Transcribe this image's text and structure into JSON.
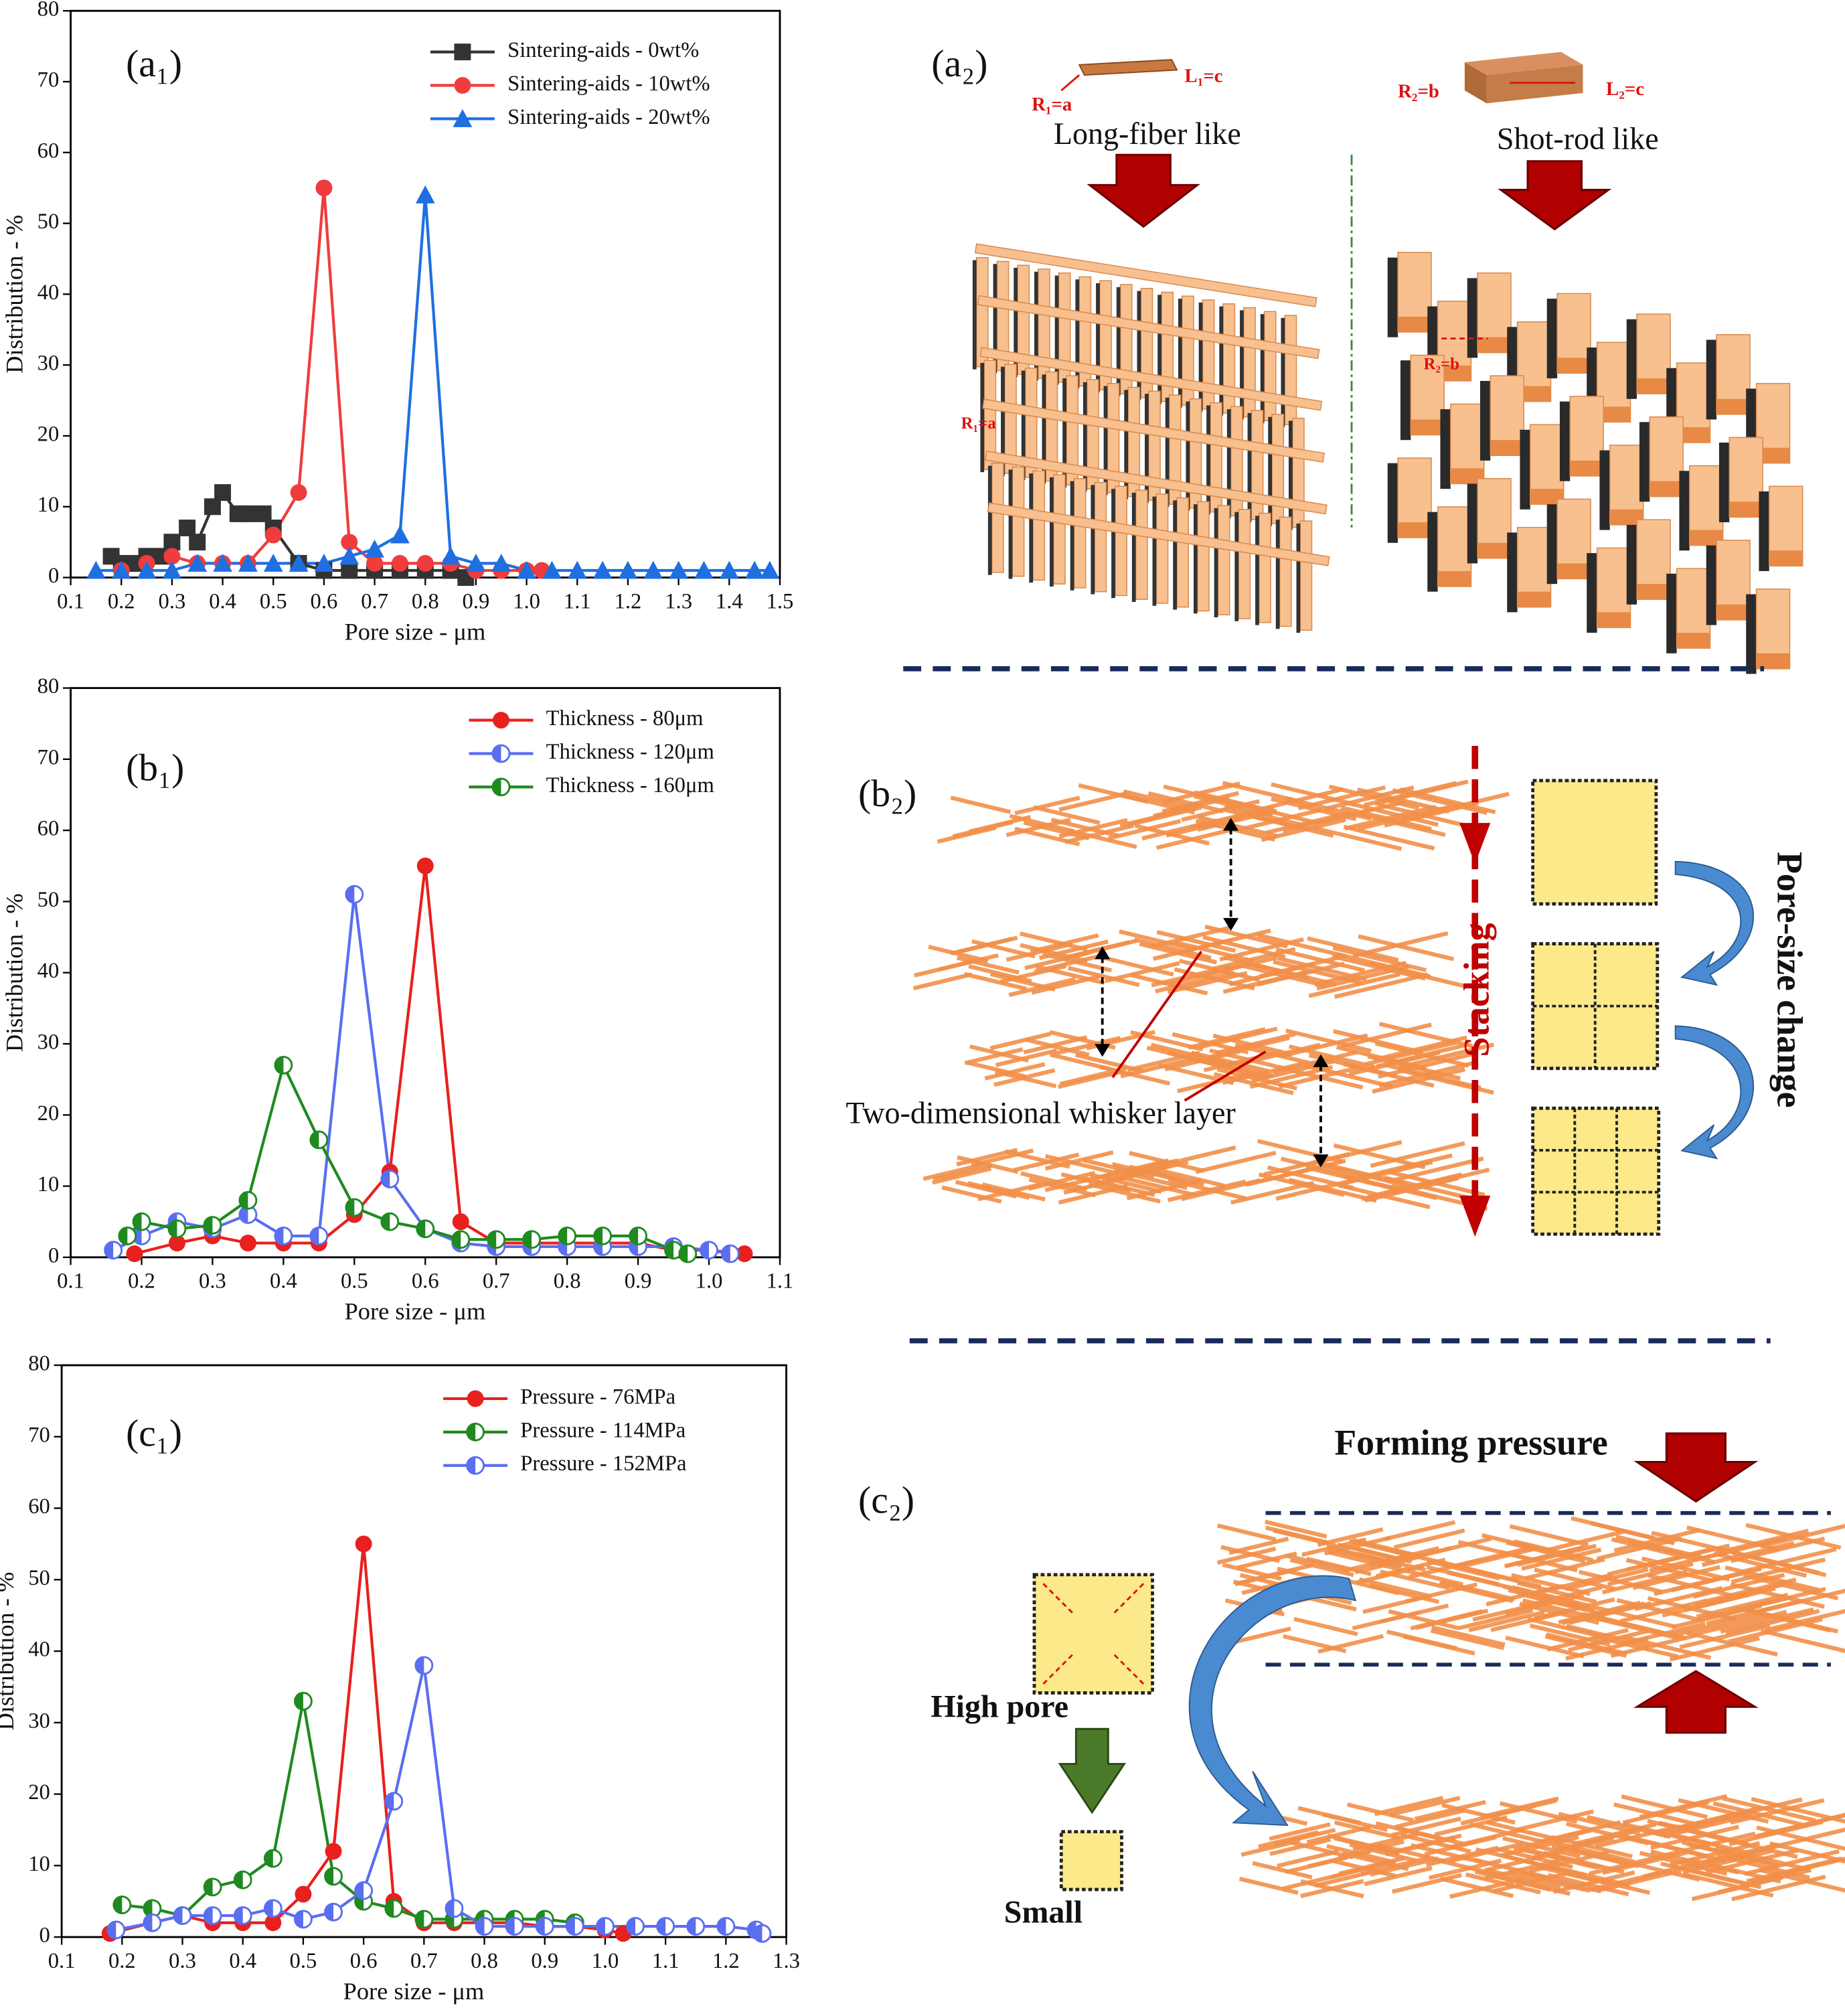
{
  "chart_data": [
    {
      "type": "line",
      "panel_label": "(a₁)",
      "xlabel": "Pore size - μm",
      "ylabel": "Distribution - %",
      "xlim": [
        0.1,
        1.5
      ],
      "xticks": [
        0.1,
        0.2,
        0.3,
        0.4,
        0.5,
        0.6,
        0.7,
        0.8,
        0.9,
        {
          "value": 1,
          "label": "1.0"
        },
        1.1,
        1.2,
        1.3,
        1.4,
        1.5
      ],
      "ylim": [
        0,
        80
      ],
      "yticks": [
        0,
        10,
        20,
        30,
        40,
        50,
        60,
        70,
        80
      ],
      "legend": "upper right",
      "series": [
        {
          "name": "Sintering-aids - 0wt%",
          "color": "#333333",
          "marker": "square",
          "x": [
            0.18,
            0.2,
            0.23,
            0.25,
            0.28,
            0.3,
            0.33,
            0.35,
            0.38,
            0.4,
            0.43,
            0.45,
            0.48,
            0.5,
            0.55,
            0.6,
            0.65,
            0.7,
            0.75,
            0.8,
            0.85,
            0.88
          ],
          "values": [
            3,
            2,
            2,
            3,
            3,
            5,
            7,
            5,
            10,
            12,
            9,
            9,
            9,
            7,
            2,
            1,
            1,
            1,
            1,
            1,
            1,
            0
          ]
        },
        {
          "name": "Sintering-aids - 10wt%",
          "color": "#f03c3c",
          "marker": "circle",
          "x": [
            0.2,
            0.25,
            0.3,
            0.35,
            0.4,
            0.45,
            0.5,
            0.55,
            0.6,
            0.65,
            0.7,
            0.75,
            0.8,
            0.85,
            0.9,
            0.95,
            1.0,
            1.03
          ],
          "values": [
            1,
            2,
            3,
            2,
            2,
            2,
            6,
            12,
            55,
            5,
            2,
            2,
            2,
            2,
            1,
            1,
            1,
            1
          ]
        },
        {
          "name": "Sintering-aids - 20wt%",
          "color": "#1f6fe0",
          "marker": "triangle",
          "x": [
            0.15,
            0.2,
            0.25,
            0.3,
            0.35,
            0.4,
            0.45,
            0.5,
            0.55,
            0.6,
            0.65,
            0.7,
            0.75,
            0.8,
            0.85,
            0.9,
            0.95,
            1.0,
            1.05,
            1.1,
            1.15,
            1.2,
            1.25,
            1.3,
            1.35,
            1.4,
            1.45,
            1.48
          ],
          "values": [
            1,
            1,
            1,
            1,
            2,
            2,
            2,
            2,
            2,
            2,
            3,
            4,
            6,
            54,
            3,
            2,
            2,
            1,
            1,
            1,
            1,
            1,
            1,
            1,
            1,
            1,
            1,
            1
          ]
        }
      ]
    },
    {
      "type": "line",
      "panel_label": "(b₁)",
      "xlabel": "Pore size - μm",
      "ylabel": "Distribution - %",
      "xlim": [
        0.1,
        1.1
      ],
      "xticks": [
        0.1,
        0.2,
        0.3,
        0.4,
        0.5,
        0.6,
        0.7,
        0.8,
        0.9,
        {
          "value": 1,
          "label": "1.0"
        },
        1.1
      ],
      "ylim": [
        0,
        80
      ],
      "yticks": [
        0,
        10,
        20,
        30,
        40,
        50,
        60,
        70,
        80
      ],
      "legend": "upper right",
      "series": [
        {
          "name": "Thickness - 80μm",
          "color": "#e8201e",
          "marker": "circle",
          "x": [
            0.19,
            0.25,
            0.3,
            0.35,
            0.4,
            0.45,
            0.5,
            0.55,
            0.6,
            0.65,
            0.7,
            0.75,
            0.8,
            0.85,
            0.9,
            0.95,
            1.0,
            1.05
          ],
          "values": [
            0.5,
            2,
            3,
            2,
            2,
            2,
            6,
            12,
            55,
            5,
            2,
            2,
            2,
            2,
            2,
            1,
            1,
            0.5
          ]
        },
        {
          "name": "Thickness - 120μm",
          "color": "#5a6ef0",
          "marker": "half-circle",
          "x": [
            0.16,
            0.2,
            0.25,
            0.3,
            0.35,
            0.4,
            0.45,
            0.5,
            0.55,
            0.6,
            0.65,
            0.7,
            0.75,
            0.8,
            0.85,
            0.9,
            0.95,
            1.0,
            1.03
          ],
          "values": [
            1,
            3,
            5,
            4,
            6,
            3,
            3,
            51,
            11,
            4,
            2,
            1.5,
            1.5,
            1.5,
            1.5,
            1.5,
            1.5,
            1,
            0.5
          ]
        },
        {
          "name": "Thickness - 160μm",
          "color": "#1f8a1f",
          "marker": "half-circle",
          "x": [
            0.18,
            0.2,
            0.25,
            0.3,
            0.35,
            0.4,
            0.45,
            0.5,
            0.55,
            0.6,
            0.65,
            0.7,
            0.75,
            0.8,
            0.85,
            0.9,
            0.95,
            0.97
          ],
          "values": [
            3,
            5,
            4,
            4.5,
            8,
            27,
            16.5,
            7,
            5,
            4,
            2.5,
            2.5,
            2.5,
            3,
            3,
            3,
            1,
            0.5
          ]
        }
      ]
    },
    {
      "type": "line",
      "panel_label": "(c₁)",
      "xlabel": "Pore size - μm",
      "ylabel": "Distribution - %",
      "xlim": [
        0.1,
        1.3
      ],
      "xticks": [
        0.1,
        0.2,
        0.3,
        0.4,
        0.5,
        0.6,
        0.7,
        0.8,
        0.9,
        {
          "value": 1,
          "label": "1.0"
        },
        1.1,
        1.2,
        1.3
      ],
      "ylim": [
        0,
        80
      ],
      "yticks": [
        0,
        10,
        20,
        30,
        40,
        50,
        60,
        70,
        80
      ],
      "legend": "upper right",
      "series": [
        {
          "name": "Pressure - 76MPa",
          "color": "#e8201e",
          "marker": "circle",
          "x": [
            0.18,
            0.25,
            0.3,
            0.35,
            0.4,
            0.45,
            0.5,
            0.55,
            0.6,
            0.65,
            0.7,
            0.75,
            0.8,
            0.85,
            0.9,
            0.95,
            1.0,
            1.03
          ],
          "values": [
            0.5,
            2,
            3,
            2,
            2,
            2,
            6,
            12,
            55,
            5,
            2,
            2,
            2,
            2,
            1.5,
            1.5,
            1,
            0.5
          ]
        },
        {
          "name": "Pressure - 114MPa",
          "color": "#1f8a1f",
          "marker": "half-circle",
          "x": [
            0.2,
            0.25,
            0.3,
            0.35,
            0.4,
            0.45,
            0.5,
            0.55,
            0.6,
            0.65,
            0.7,
            0.75,
            0.8,
            0.85,
            0.9,
            0.95
          ],
          "values": [
            4.5,
            4,
            3,
            7,
            8,
            11,
            33,
            8.5,
            5,
            4,
            2.5,
            2.5,
            2.5,
            2.5,
            2.5,
            2
          ]
        },
        {
          "name": "Pressure - 152MPa",
          "color": "#5a6ef0",
          "marker": "half-circle",
          "x": [
            0.19,
            0.25,
            0.3,
            0.35,
            0.4,
            0.45,
            0.5,
            0.55,
            0.6,
            0.65,
            0.7,
            0.75,
            0.8,
            0.85,
            0.9,
            0.95,
            1.0,
            1.05,
            1.1,
            1.15,
            1.2,
            1.25,
            1.26
          ],
          "values": [
            1,
            2,
            3,
            3,
            3,
            4,
            2.5,
            3.5,
            6.5,
            19,
            38,
            4,
            1.5,
            1.5,
            1.5,
            1.5,
            1.5,
            1.5,
            1.5,
            1.5,
            1.5,
            1,
            0.5
          ]
        }
      ]
    }
  ],
  "diagram_a2": {
    "panel_label": "(a₂)",
    "fiber_radius": "R₁=a",
    "fiber_length": "L₁=c",
    "fiber_title": "Long-fiber like",
    "fiber_lattice_radius": "R₁=a",
    "rod_radius": "R₂=b",
    "rod_length": "L₂=c",
    "rod_title": "Shot-rod like",
    "rod_lattice_radius": "R₂=b"
  },
  "diagram_b2": {
    "panel_label": "(b₂)",
    "layer_label": "Two-dimensional whisker layer",
    "stacking": "Stacking",
    "pore_change": "Pore-size change"
  },
  "diagram_c2": {
    "panel_label": "(c₂)",
    "pressure": "Forming pressure",
    "high_pore": "High pore",
    "small": "Small"
  }
}
